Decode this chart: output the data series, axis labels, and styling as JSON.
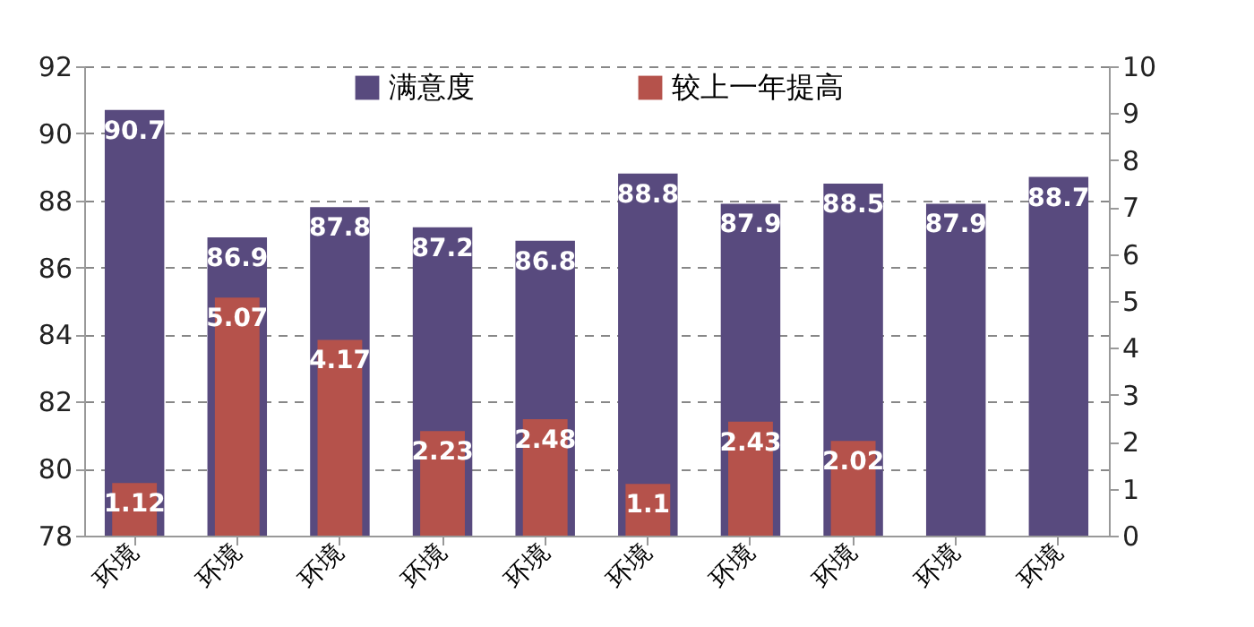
{
  "chart_data": {
    "type": "bar",
    "categories": [
      "环境",
      "环境",
      "环境",
      "环境",
      "环境",
      "环境",
      "环境",
      "环境",
      "环境",
      "环境"
    ],
    "series": [
      {
        "name": "满意度",
        "color": "#584a7e",
        "values": [
          90.7,
          86.9,
          87.8,
          87.2,
          86.8,
          88.8,
          87.9,
          88.5,
          87.9,
          88.7
        ]
      },
      {
        "name": "较上一年提高",
        "color": "#b5524b",
        "axis": "y2",
        "values": [
          1.12,
          5.07,
          4.17,
          2.23,
          2.48,
          1.1,
          2.43,
          2.02,
          null,
          null
        ]
      }
    ],
    "ylim": [
      78,
      92
    ],
    "yticks": [
      78,
      80,
      82,
      84,
      86,
      88,
      90,
      92
    ],
    "y2lim": [
      0,
      10
    ],
    "y2ticks": [
      0,
      1,
      2,
      3,
      4,
      5,
      6,
      7,
      8,
      9,
      10
    ],
    "grid": "y",
    "legend": "top",
    "data_labels": true
  }
}
